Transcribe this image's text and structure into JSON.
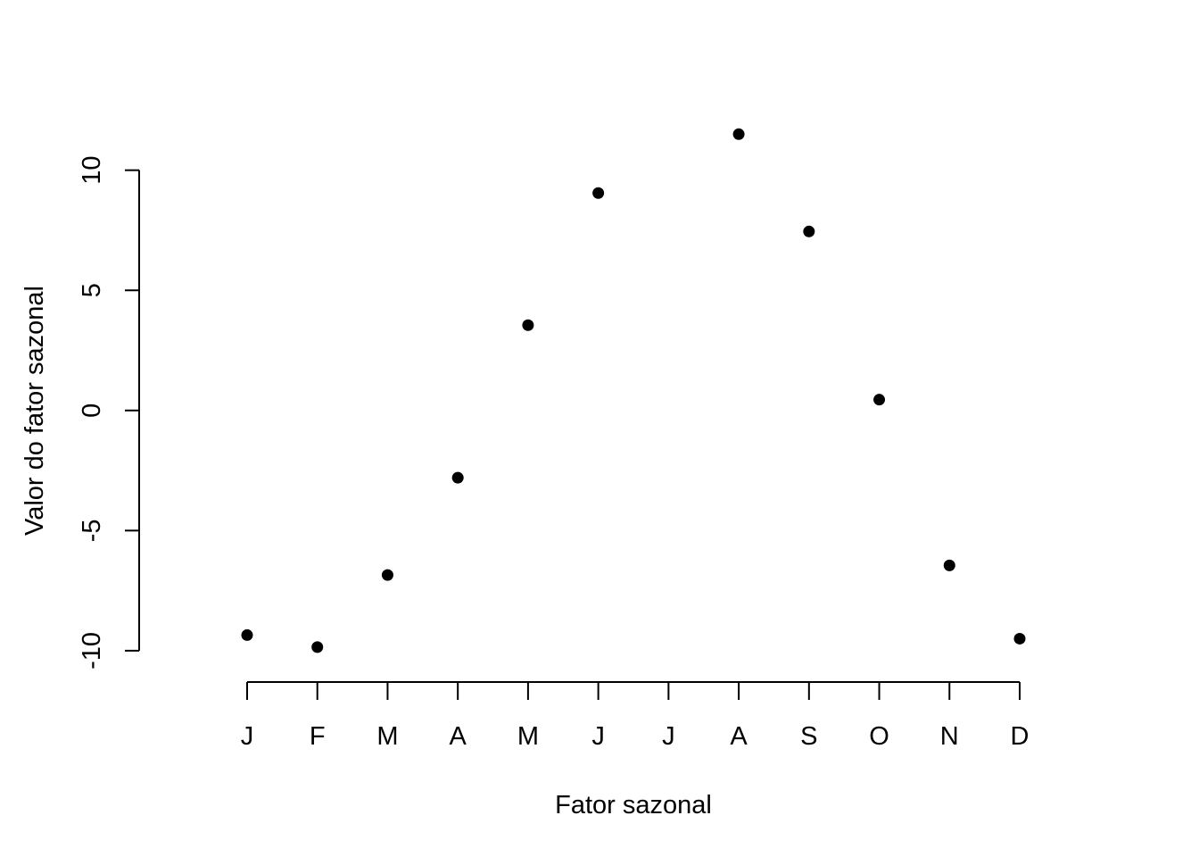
{
  "chart_data": {
    "type": "scatter",
    "title": "",
    "xlabel": "Fator sazonal",
    "ylabel": "Valor do fator sazonal",
    "categories": [
      "J",
      "F",
      "M",
      "A",
      "M",
      "J",
      "J",
      "A",
      "S",
      "O",
      "N",
      "D"
    ],
    "values": [
      -9.35,
      -9.85,
      -6.85,
      -2.8,
      3.55,
      9.05,
      null,
      11.5,
      7.45,
      0.45,
      -6.45,
      -9.5
    ],
    "yticks": [
      -10,
      -5,
      0,
      5,
      10
    ],
    "ytick_labels": [
      "-10",
      "-5",
      "0",
      "5",
      "10"
    ],
    "ylim": [
      -11.75,
      12.7
    ],
    "grid": false,
    "legend": "none",
    "point_color": "#000000"
  }
}
